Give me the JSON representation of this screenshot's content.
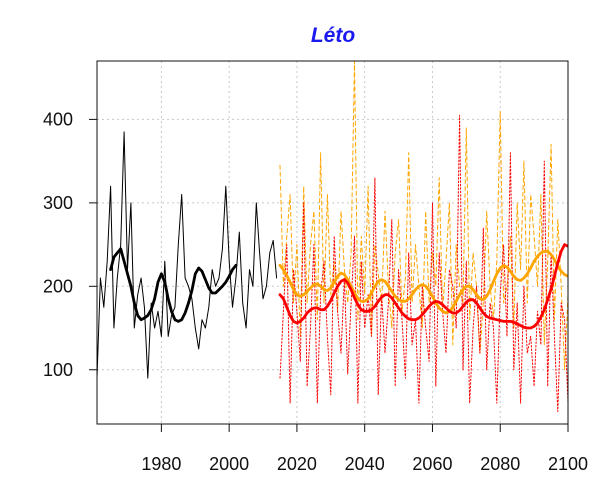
{
  "chart_data": {
    "type": "line",
    "title": "Léto",
    "xlabel": "",
    "ylabel": "",
    "xlim": [
      1961,
      2100
    ],
    "ylim": [
      35,
      470
    ],
    "grid": true,
    "legend": "none",
    "x_ticks": [
      1980,
      2000,
      2020,
      2040,
      2060,
      2080,
      2100
    ],
    "y_ticks": [
      100,
      200,
      300,
      400
    ],
    "colors": {
      "observed": "#000000",
      "scenario_a": "#ffa500",
      "scenario_b": "#ff0000",
      "title": "#1a1aee"
    },
    "series": [
      {
        "style": "solid-thin",
        "color": "#000000",
        "x_start": 1961,
        "values": [
          90,
          210,
          175,
          230,
          320,
          150,
          210,
          250,
          385,
          220,
          300,
          150,
          190,
          210,
          175,
          90,
          180,
          150,
          170,
          140,
          230,
          140,
          165,
          175,
          250,
          310,
          210,
          200,
          185,
          150,
          125,
          160,
          150,
          175,
          220,
          200,
          210,
          245,
          320,
          230,
          175,
          210,
          265,
          180,
          150,
          220,
          200,
          300,
          240,
          185,
          200,
          240,
          255,
          210
        ]
      },
      {
        "style": "solid-thick",
        "color": "#000000",
        "x_start": 1965,
        "values": [
          220,
          235,
          240,
          245,
          230,
          215,
          200,
          180,
          165,
          160,
          162,
          165,
          172,
          185,
          205,
          215,
          205,
          185,
          170,
          160,
          158,
          160,
          168,
          180,
          195,
          215,
          222,
          218,
          208,
          198,
          192,
          192,
          196,
          200,
          205,
          212,
          220,
          225
        ]
      },
      {
        "style": "dashed-thin",
        "color": "#ffa500",
        "x_start": 2015,
        "values": [
          345,
          200,
          260,
          310,
          180,
          250,
          140,
          320,
          180,
          250,
          290,
          160,
          360,
          180,
          310,
          190,
          230,
          170,
          290,
          220,
          180,
          240,
          470,
          160,
          260,
          190,
          320,
          140,
          250,
          215,
          180,
          290,
          200,
          150,
          240,
          280,
          170,
          210,
          360,
          180,
          250,
          200,
          150,
          290,
          180,
          240,
          200,
          330,
          170,
          230,
          300,
          130,
          250,
          200,
          180,
          390,
          160,
          240,
          200,
          120,
          180,
          290,
          200,
          160,
          230,
          410,
          180,
          200,
          260,
          150,
          300,
          220,
          350,
          180,
          310,
          260,
          200,
          310,
          130,
          230,
          370,
          160,
          280,
          200,
          100,
          190
        ]
      },
      {
        "style": "dotted-thin",
        "color": "#ff0000",
        "x_start": 2015,
        "values": [
          90,
          170,
          250,
          60,
          220,
          170,
          110,
          300,
          80,
          150,
          250,
          60,
          190,
          230,
          140,
          70,
          260,
          170,
          120,
          210,
          95,
          180,
          260,
          60,
          230,
          150,
          190,
          140,
          330,
          70,
          190,
          120,
          180,
          280,
          80,
          220,
          160,
          90,
          240,
          130,
          160,
          60,
          200,
          150,
          110,
          300,
          80,
          240,
          170,
          120,
          220,
          200,
          150,
          405,
          100,
          230,
          60,
          150,
          200,
          120,
          270,
          100,
          180,
          150,
          60,
          190,
          250,
          140,
          360,
          100,
          180,
          60,
          200,
          120,
          140,
          80,
          170,
          130,
          350,
          80,
          240,
          140,
          50,
          180,
          160,
          60
        ]
      },
      {
        "style": "solid-thick",
        "color": "#ffa500",
        "x_start": 2015,
        "values": [
          225,
          220,
          213,
          205,
          196,
          190,
          188,
          190,
          194,
          198,
          202,
          203,
          200,
          196,
          195,
          198,
          205,
          212,
          216,
          214,
          208,
          200,
          192,
          185,
          182,
          182,
          185,
          192,
          200,
          206,
          208,
          206,
          200,
          194,
          188,
          184,
          182,
          182,
          185,
          190,
          196,
          200,
          202,
          200,
          195,
          188,
          180,
          174,
          170,
          168,
          170,
          175,
          182,
          190,
          196,
          200,
          200,
          196,
          190,
          185,
          184,
          188,
          196,
          206,
          215,
          222,
          225,
          223,
          218,
          212,
          208,
          207,
          210,
          215,
          222,
          230,
          236,
          240,
          242,
          242,
          238,
          232,
          224,
          218,
          214,
          212
        ]
      },
      {
        "style": "solid-thick",
        "color": "#ff0000",
        "x_start": 2015,
        "values": [
          190,
          185,
          175,
          165,
          158,
          156,
          158,
          162,
          168,
          172,
          174,
          174,
          172,
          172,
          176,
          183,
          192,
          200,
          206,
          208,
          204,
          196,
          186,
          178,
          172,
          170,
          170,
          172,
          176,
          182,
          187,
          190,
          190,
          186,
          180,
          174,
          168,
          164,
          161,
          160,
          160,
          162,
          166,
          171,
          176,
          180,
          182,
          181,
          178,
          174,
          170,
          168,
          168,
          171,
          176,
          181,
          184,
          184,
          180,
          174,
          168,
          164,
          162,
          161,
          160,
          159,
          158,
          158,
          158,
          157,
          155,
          153,
          151,
          150,
          150,
          152,
          156,
          163,
          172,
          184,
          197,
          212,
          228,
          242,
          250,
          248
        ]
      }
    ]
  }
}
